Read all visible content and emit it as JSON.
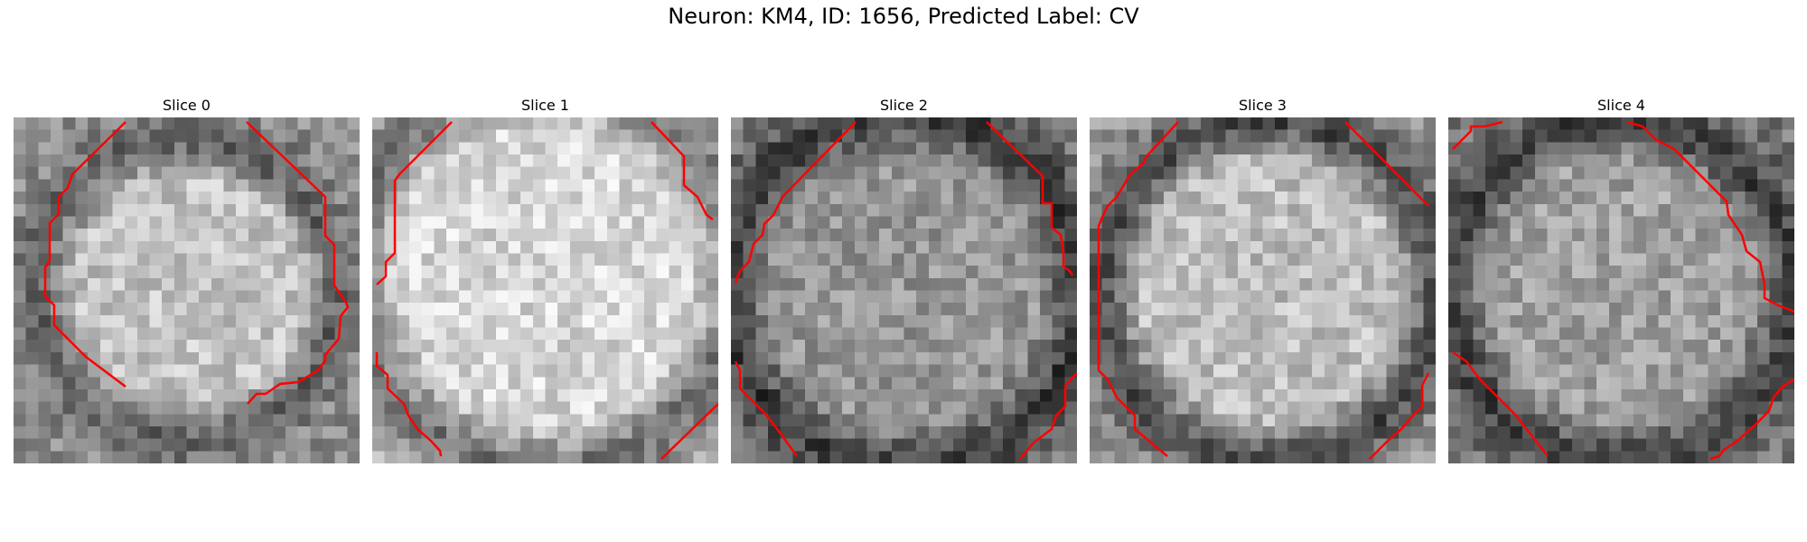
{
  "title": "Neuron: KM4, ID: 1656, Predicted Label: CV",
  "contour_color": "#ff0000",
  "slices": [
    {
      "label": "Slice 0"
    },
    {
      "label": "Slice 1"
    },
    {
      "label": "Slice 2"
    },
    {
      "label": "Slice 3"
    },
    {
      "label": "Slice 4"
    }
  ]
}
